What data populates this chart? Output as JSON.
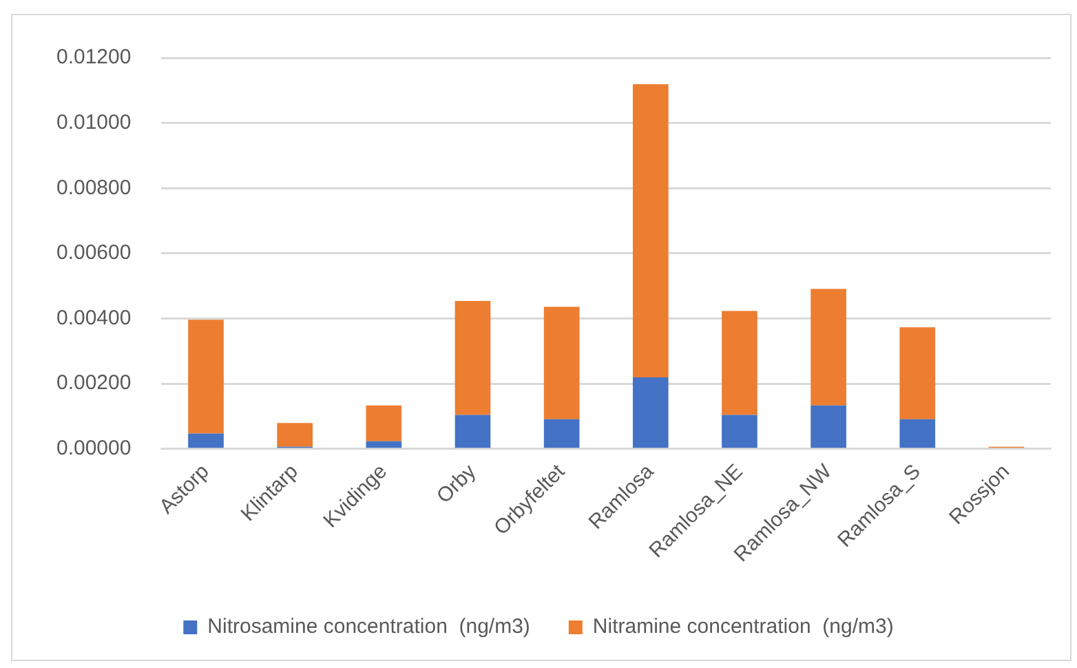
{
  "chart_data": {
    "type": "bar",
    "stacked": true,
    "categories": [
      "Astorp",
      "Klintarp",
      "Kvidinge",
      "Orby",
      "Orbyfeltet",
      "Ramlosa",
      "Ramlosa_NE",
      "Ramlosa_NW",
      "Ramlosa_S",
      "Rossjon"
    ],
    "series": [
      {
        "name": "Nitrosamine concentration  (ng/m3)",
        "color": "#4472c4",
        "values": [
          0.00047,
          6e-05,
          0.00023,
          0.00104,
          0.00091,
          0.00219,
          0.00104,
          0.00133,
          0.00091,
          0
        ]
      },
      {
        "name": "Nitramine concentration  (ng/m3)",
        "color": "#ed7d31",
        "values": [
          0.00349,
          0.00073,
          0.0011,
          0.0035,
          0.00345,
          0.009,
          0.00319,
          0.00358,
          0.00282,
          6e-05
        ]
      }
    ],
    "ylim": [
      0,
      0.012
    ],
    "yticks": [
      {
        "value": 0,
        "label": "0.00000"
      },
      {
        "value": 0.002,
        "label": "0.00200"
      },
      {
        "value": 0.004,
        "label": "0.00400"
      },
      {
        "value": 0.006,
        "label": "0.00600"
      },
      {
        "value": 0.008,
        "label": "0.00800"
      },
      {
        "value": 0.01,
        "label": "0.01000"
      },
      {
        "value": 0.012,
        "label": "0.01200"
      }
    ],
    "grid": "y",
    "legend": "bottom"
  }
}
